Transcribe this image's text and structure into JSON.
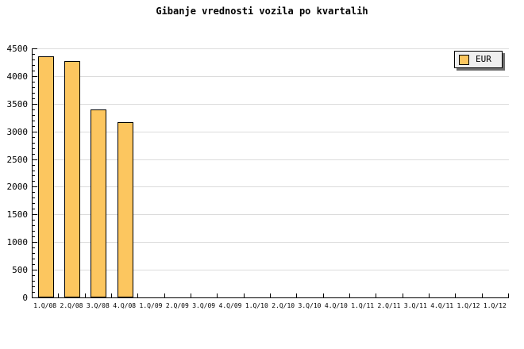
{
  "title": "Gibanje vrednosti vozila po kvartalih",
  "legend": {
    "label": "EUR",
    "position": "top-right"
  },
  "colors": {
    "bar_fill": "#fcc65f",
    "bar_border": "#000000",
    "gridline": "#dcdcdc",
    "axis": "#000000",
    "legend_bg": "#efefef",
    "legend_shadow": "#6e6e6e",
    "background": "#ffffff",
    "text": "#000000"
  },
  "chart_data": {
    "type": "bar",
    "title": "Gibanje vrednosti vozila po kvartalih",
    "categories": [
      "1.Q/08",
      "2.Q/08",
      "3.Q/08",
      "4.Q/08",
      "1.Q/09",
      "2.Q/09",
      "3.Q/09",
      "4.Q/09",
      "1.Q/10",
      "2.Q/10",
      "3.Q/10",
      "4.Q/10",
      "1.Q/11",
      "2.Q/11",
      "3.Q/11",
      "4.Q/11",
      "1.Q/12",
      "1.Q/12"
    ],
    "series": [
      {
        "name": "EUR",
        "values": [
          4360,
          4270,
          3390,
          3170,
          null,
          null,
          null,
          null,
          null,
          null,
          null,
          null,
          null,
          null,
          null,
          null,
          null,
          null
        ]
      }
    ],
    "xlabel": "",
    "ylabel": "",
    "ylim": [
      0,
      4500
    ],
    "ytick_major": 500,
    "ytick_minor": 100,
    "grid": true,
    "legend_position": "top-right"
  }
}
